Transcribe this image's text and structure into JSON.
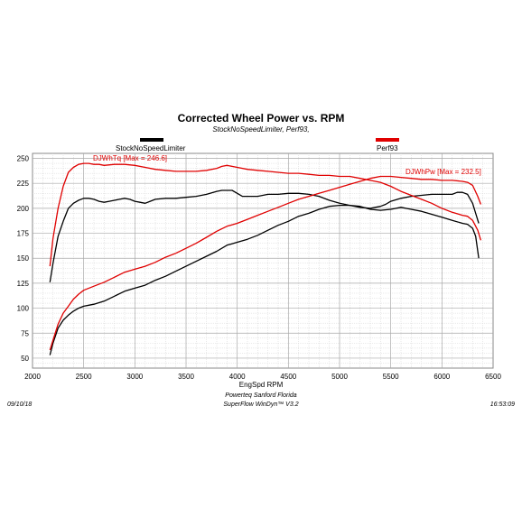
{
  "chart_data": {
    "type": "line",
    "title": "Corrected Wheel Power vs. RPM",
    "subtitle": "StockNoSpeedLimiter, Perf93,",
    "xlabel": "EngSpd RPM",
    "ylabel": "",
    "xlim": [
      2000,
      6500
    ],
    "ylim": [
      40,
      255
    ],
    "x_ticks": [
      2000,
      2500,
      3000,
      3500,
      4000,
      4500,
      5000,
      5500,
      6000,
      6500
    ],
    "y_ticks": [
      50,
      75,
      100,
      125,
      150,
      175,
      200,
      225,
      250
    ],
    "grid": true,
    "legend": [
      {
        "label": "StockNoSpeedLimiter",
        "color": "#000000",
        "placement": "top-left"
      },
      {
        "label": "Perf93",
        "color": "#e00000",
        "placement": "top-right"
      }
    ],
    "annotations": [
      {
        "text": "DJWhTq [Max = 246.6]",
        "color": "#e00000"
      },
      {
        "text": "DJWhPw [Max = 232.5]",
        "color": "#e00000"
      }
    ],
    "series": [
      {
        "run": "StockNoSpeedLimiter",
        "measure": "DJWhTq",
        "color": "#000000",
        "x": [
          2170,
          2200,
          2250,
          2300,
          2350,
          2400,
          2450,
          2500,
          2550,
          2600,
          2650,
          2700,
          2750,
          2800,
          2850,
          2900,
          2950,
          3000,
          3050,
          3100,
          3150,
          3200,
          3300,
          3400,
          3500,
          3600,
          3700,
          3800,
          3850,
          3900,
          3950,
          4000,
          4050,
          4100,
          4200,
          4300,
          4400,
          4500,
          4600,
          4700,
          4800,
          4900,
          5000,
          5100,
          5200,
          5300,
          5400,
          5450,
          5500,
          5600,
          5700,
          5800,
          5900,
          6000,
          6100,
          6150,
          6200,
          6250,
          6300,
          6330,
          6360
        ],
        "y": [
          126,
          145,
          172,
          187,
          200,
          205,
          208,
          210,
          210,
          209,
          207,
          206,
          207,
          208,
          209,
          210,
          209,
          207,
          206,
          205,
          207,
          209,
          210,
          210,
          211,
          212,
          214,
          217,
          218,
          218,
          218,
          215,
          212,
          212,
          212,
          214,
          214,
          215,
          215,
          214,
          212,
          208,
          205,
          203,
          201,
          200,
          202,
          204,
          207,
          210,
          212,
          213,
          214,
          214,
          214,
          216,
          216,
          214,
          205,
          195,
          185
        ]
      },
      {
        "run": "Perf93",
        "measure": "DJWhTq",
        "color": "#e00000",
        "x": [
          2170,
          2200,
          2250,
          2300,
          2350,
          2400,
          2450,
          2500,
          2550,
          2600,
          2650,
          2700,
          2800,
          2900,
          3000,
          3100,
          3200,
          3300,
          3400,
          3500,
          3600,
          3700,
          3800,
          3850,
          3900,
          4000,
          4100,
          4200,
          4300,
          4400,
          4500,
          4600,
          4700,
          4800,
          4900,
          5000,
          5100,
          5200,
          5300,
          5400,
          5500,
          5600,
          5700,
          5800,
          5900,
          6000,
          6100,
          6200,
          6250,
          6300,
          6350,
          6380
        ],
        "y": [
          142,
          170,
          200,
          222,
          236,
          241,
          244,
          245,
          245,
          244,
          244,
          243,
          244,
          244,
          243,
          241,
          239,
          238,
          237,
          237,
          237,
          238,
          240,
          242,
          243,
          241,
          239,
          238,
          237,
          236,
          235,
          235,
          234,
          233,
          233,
          232,
          232,
          230,
          228,
          226,
          222,
          217,
          213,
          209,
          205,
          200,
          196,
          193,
          192,
          188,
          178,
          168
        ]
      },
      {
        "run": "StockNoSpeedLimiter",
        "measure": "DJWhPw",
        "color": "#000000",
        "x": [
          2170,
          2200,
          2250,
          2300,
          2350,
          2400,
          2450,
          2500,
          2550,
          2600,
          2700,
          2800,
          2900,
          3000,
          3100,
          3200,
          3300,
          3400,
          3500,
          3600,
          3700,
          3800,
          3900,
          4000,
          4100,
          4200,
          4300,
          4400,
          4500,
          4600,
          4700,
          4800,
          4900,
          5000,
          5100,
          5200,
          5300,
          5400,
          5500,
          5600,
          5700,
          5800,
          5900,
          6000,
          6100,
          6200,
          6250,
          6300,
          6330,
          6360
        ],
        "y": [
          53,
          65,
          80,
          88,
          93,
          97,
          100,
          102,
          103,
          104,
          107,
          112,
          117,
          120,
          123,
          128,
          132,
          137,
          142,
          147,
          152,
          157,
          163,
          166,
          169,
          173,
          178,
          183,
          187,
          192,
          195,
          199,
          202,
          203,
          203,
          202,
          199,
          198,
          199,
          201,
          199,
          197,
          194,
          191,
          188,
          185,
          184,
          180,
          172,
          150
        ]
      },
      {
        "run": "Perf93",
        "measure": "DJWhPw",
        "color": "#e00000",
        "x": [
          2170,
          2200,
          2250,
          2300,
          2350,
          2400,
          2450,
          2500,
          2600,
          2700,
          2800,
          2900,
          3000,
          3100,
          3200,
          3300,
          3400,
          3500,
          3600,
          3700,
          3800,
          3900,
          4000,
          4100,
          4200,
          4300,
          4400,
          4500,
          4600,
          4700,
          4800,
          4900,
          5000,
          5100,
          5200,
          5300,
          5400,
          5500,
          5600,
          5700,
          5800,
          5900,
          6000,
          6100,
          6200,
          6250,
          6300,
          6350,
          6380
        ],
        "y": [
          58,
          68,
          84,
          95,
          102,
          109,
          114,
          118,
          122,
          126,
          131,
          136,
          139,
          142,
          146,
          151,
          155,
          160,
          165,
          171,
          177,
          182,
          185,
          189,
          193,
          197,
          201,
          205,
          209,
          212,
          215,
          218,
          221,
          224,
          227,
          230,
          232,
          232,
          231,
          230,
          229,
          229,
          228,
          228,
          227,
          226,
          223,
          212,
          204
        ]
      }
    ]
  },
  "footer": {
    "line1": "Powerteq Sanford Florida",
    "line2": "SuperFlow WinDyn™ V3.2",
    "date": "09/10/18",
    "time": "16:53:09"
  }
}
